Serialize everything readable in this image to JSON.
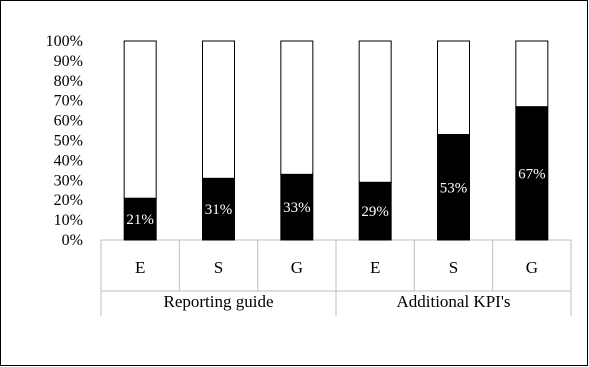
{
  "chart_data": {
    "type": "bar",
    "stacked": "100%",
    "categories": [
      "E",
      "S",
      "G",
      "E",
      "S",
      "G"
    ],
    "groups": [
      {
        "label": "Reporting guide",
        "categories": [
          "E",
          "S",
          "G"
        ]
      },
      {
        "label": "Additional KPI's",
        "categories": [
          "E",
          "S",
          "G"
        ]
      }
    ],
    "series": [
      {
        "values": [
          21,
          31,
          33,
          29,
          53,
          67
        ],
        "color": "#000000"
      },
      {
        "values": [
          79,
          69,
          67,
          71,
          47,
          33
        ],
        "color": "#ffffff"
      }
    ],
    "data_labels": [
      "21%",
      "31%",
      "33%",
      "29%",
      "53%",
      "67%"
    ],
    "yticks": [
      "0%",
      "10%",
      "20%",
      "30%",
      "40%",
      "50%",
      "60%",
      "70%",
      "80%",
      "90%",
      "100%"
    ],
    "ylim": [
      0,
      100
    ],
    "grid": false,
    "legend": "none"
  }
}
